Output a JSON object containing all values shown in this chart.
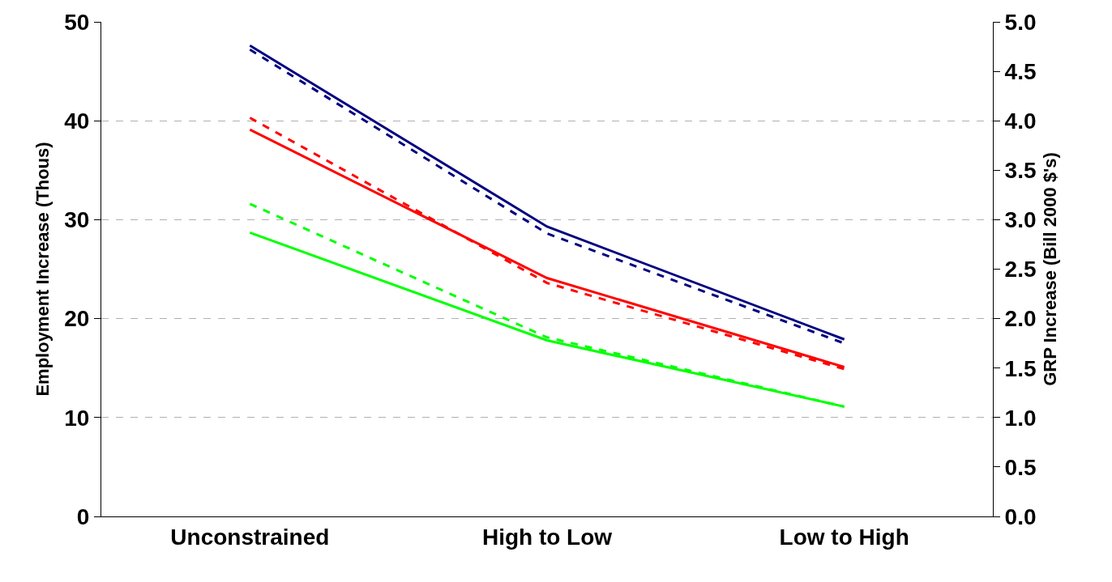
{
  "chart_data": {
    "type": "line",
    "ylabel": "Employment Increase (Thous)",
    "y2label": "GRP Increase (Bill 2000 $'s)",
    "categories": [
      "Unconstrained",
      "High to Low",
      "Low to High"
    ],
    "series": [
      {
        "color": "#000080",
        "values": [
          47.6,
          29.3,
          17.9
        ],
        "line_style": "solid"
      },
      {
        "color": "#ff0000",
        "values": [
          39.1,
          24.1,
          15.1
        ],
        "line_style": "solid"
      },
      {
        "color": "#00ff00",
        "values": [
          28.7,
          17.8,
          11.1
        ],
        "line_style": "solid"
      },
      {
        "color": "#000080",
        "values": [
          4.72,
          2.86,
          1.75
        ],
        "line_style": "dashed",
        "axis": "y2"
      },
      {
        "color": "#ff0000",
        "values": [
          4.03,
          2.36,
          1.49
        ],
        "line_style": "dashed",
        "axis": "y2"
      },
      {
        "color": "#00ff00",
        "values": [
          3.16,
          1.81,
          1.11
        ],
        "line_style": "dashed",
        "axis": "y2"
      }
    ],
    "ylim": [
      0,
      50
    ],
    "yticks": [
      0,
      10,
      20,
      30,
      40,
      50
    ],
    "y2lim": [
      0,
      5
    ],
    "y2ticks": [
      {
        "value": 0,
        "label": "0.0"
      },
      {
        "value": 0.5,
        "label": "0.5"
      },
      {
        "value": 1,
        "label": "1.0"
      },
      {
        "value": 1.5,
        "label": "1.5"
      },
      {
        "value": 2,
        "label": "2.0"
      },
      {
        "value": 2.5,
        "label": "2.5"
      },
      {
        "value": 3,
        "label": "3.0"
      },
      {
        "value": 3.5,
        "label": "3.5"
      },
      {
        "value": 4,
        "label": "4.0"
      },
      {
        "value": 4.5,
        "label": "4.5"
      },
      {
        "value": 5,
        "label": "5.0"
      }
    ],
    "grid": "y",
    "marker": "none"
  }
}
